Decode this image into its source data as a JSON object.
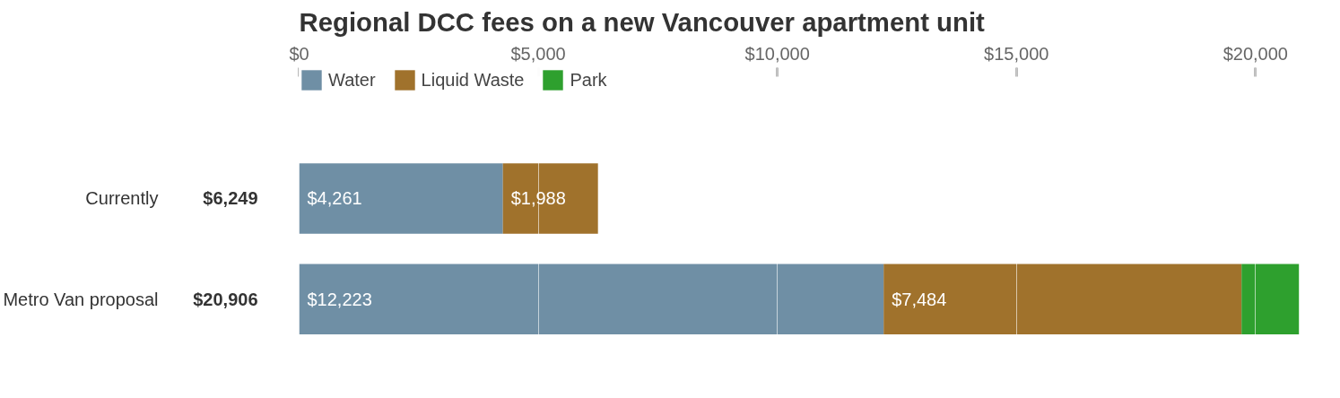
{
  "chart_data": {
    "type": "bar",
    "orientation": "horizontal",
    "stacked": true,
    "title": "Regional DCC fees on a new Vancouver apartment unit",
    "categories": [
      "Currently",
      "Metro Van proposal"
    ],
    "series": [
      {
        "name": "Water",
        "color": "#6f8fa5",
        "values": [
          4261,
          12223
        ],
        "value_labels": [
          "$4,261",
          "$12,223"
        ]
      },
      {
        "name": "Liquid Waste",
        "color": "#a0722c",
        "values": [
          1988,
          7484
        ],
        "value_labels": [
          "$1,988",
          "$7,484"
        ]
      },
      {
        "name": "Park",
        "color": "#2ea02e",
        "values": [
          null,
          1200
        ],
        "value_labels": [
          null,
          null
        ]
      }
    ],
    "totals": [
      "$6,249",
      "$20,906"
    ],
    "xlim": [
      0,
      20950
    ],
    "xticks": [
      {
        "value": 0,
        "label": "$0"
      },
      {
        "value": 5000,
        "label": "$5,000"
      },
      {
        "value": 10000,
        "label": "$10,000"
      },
      {
        "value": 15000,
        "label": "$15,000"
      },
      {
        "value": 20000,
        "label": "$20,000"
      }
    ],
    "grid": "x",
    "legend": "top left"
  }
}
